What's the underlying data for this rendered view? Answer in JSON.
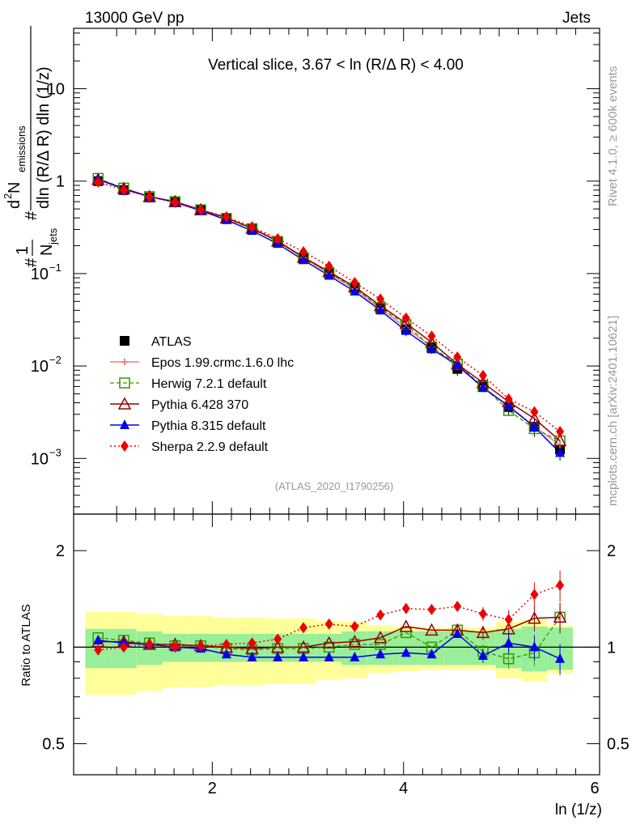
{
  "header": {
    "left": "13000 GeV pp",
    "right": "Jets",
    "side_right": "Rivet 4.1.0, ≥ 600k events",
    "side_right2": "mcplots.cern.ch [arXiv:2401.10621]",
    "watermark": "(ATLAS_2020_I1790256)"
  },
  "chart_data": [
    {
      "type": "scatter",
      "panel": "main",
      "title": "Vertical slice, 3.67 < ln (R/Δ R) < 4.00",
      "ylabel": "1/N_jets dN_emissions^2 / dln(R/ΔR) dln(1/z)",
      "ylabel_parts": {
        "frac_num": "1",
        "frac_den": "N",
        "frac_den_sub": "jets",
        "d2_num": "d",
        "d2_sup": "2",
        "n_num": " N",
        "n_sub": "emissions",
        "den": "dln (R/Δ R) dln (1/z)",
        "hash": "#"
      },
      "yscale": "log",
      "ylim": [
        0.00025,
        45
      ],
      "xlim": [
        0.55,
        6.05
      ],
      "y_ticks": [
        {
          "v": 10,
          "m": "10",
          "e": ""
        },
        {
          "v": 1,
          "m": "1",
          "e": ""
        },
        {
          "v": 0.1,
          "m": "10",
          "e": "−1"
        },
        {
          "v": 0.01,
          "m": "10",
          "e": "−2"
        },
        {
          "v": 0.001,
          "m": "10",
          "e": "−3"
        }
      ],
      "x": [
        0.806,
        1.074,
        1.343,
        1.611,
        1.879,
        2.148,
        2.416,
        2.684,
        2.953,
        3.221,
        3.489,
        3.758,
        4.026,
        4.294,
        4.563,
        4.831,
        5.099,
        5.368,
        5.636
      ],
      "series": [
        {
          "name": "ATLAS",
          "color": "#000000",
          "marker": "square",
          "values": [
            1.0,
            0.8,
            0.665,
            0.59,
            0.485,
            0.4,
            0.31,
            0.225,
            0.15,
            0.102,
            0.069,
            0.042,
            0.025,
            0.016,
            0.0093,
            0.0062,
            0.0036,
            0.0022,
            0.00125
          ],
          "err": [
            0.12,
            0.1,
            0.08,
            0.07,
            0.055,
            0.045,
            0.035,
            0.025,
            0.018,
            0.012,
            0.009,
            0.006,
            0.004,
            0.0025,
            0.0015,
            0.001,
            0.0007,
            0.0005,
            0.0003
          ]
        },
        {
          "name": "Epos 1.99.crmc.1.6.0 lhc",
          "color": "#f08080",
          "marker": "cross",
          "values": [
            1.06,
            0.84,
            0.68,
            0.6,
            0.49,
            0.405,
            0.305,
            0.222,
            0.148,
            0.1,
            0.068,
            0.042,
            0.026,
            0.016,
            0.0098,
            0.006,
            0.0036,
            0.0022,
            0.0014
          ]
        },
        {
          "name": "Herwig 7.2.1 default",
          "color": "#339900",
          "marker": "open-square",
          "values": [
            1.07,
            0.84,
            0.68,
            0.6,
            0.49,
            0.395,
            0.305,
            0.222,
            0.148,
            0.102,
            0.07,
            0.043,
            0.028,
            0.016,
            0.0105,
            0.006,
            0.0033,
            0.0021,
            0.00155
          ]
        },
        {
          "name": "Pythia 6.428 370",
          "color": "#990000",
          "marker": "open-triangle",
          "values": [
            1.04,
            0.83,
            0.68,
            0.6,
            0.49,
            0.4,
            0.31,
            0.225,
            0.15,
            0.105,
            0.072,
            0.045,
            0.029,
            0.018,
            0.0105,
            0.0066,
            0.0041,
            0.0027,
            0.00155
          ]
        },
        {
          "name": "Pythia 8.315 default",
          "color": "#0000ee",
          "marker": "triangle",
          "values": [
            1.05,
            0.82,
            0.68,
            0.59,
            0.48,
            0.38,
            0.29,
            0.21,
            0.14,
            0.095,
            0.064,
            0.04,
            0.024,
            0.0152,
            0.0103,
            0.0058,
            0.0037,
            0.0022,
            0.00115
          ]
        },
        {
          "name": "Sherpa 2.2.9 default",
          "color": "#ee0000",
          "marker": "diamond",
          "values": [
            0.98,
            0.8,
            0.68,
            0.59,
            0.49,
            0.41,
            0.32,
            0.238,
            0.172,
            0.12,
            0.08,
            0.053,
            0.033,
            0.021,
            0.0125,
            0.0079,
            0.0044,
            0.0032,
            0.00195
          ]
        }
      ],
      "legend_position": "lower-left",
      "legend": {
        "ATLAS": "ATLAS",
        "Epos": "Epos 1.99.crmc.1.6.0 lhc",
        "Herwig": "Herwig 7.2.1 default",
        "Py6": "Pythia 6.428 370",
        "Py8": "Pythia 8.315 default",
        "Sherpa": "Sherpa 2.2.9 default"
      }
    },
    {
      "type": "scatter",
      "panel": "ratio",
      "ylabel": "Ratio to ATLAS",
      "xlabel": "ln (1/z)",
      "yscale": "log",
      "ylim": [
        0.4,
        2.6
      ],
      "xlim": [
        0.55,
        6.05
      ],
      "x_ticks": [
        "2",
        "4",
        "6"
      ],
      "y_ticks": [
        "0.5",
        "1",
        "2"
      ],
      "x": [
        0.806,
        1.074,
        1.343,
        1.611,
        1.879,
        2.148,
        2.416,
        2.684,
        2.953,
        3.221,
        3.489,
        3.758,
        4.026,
        4.294,
        4.563,
        4.831,
        5.099,
        5.368,
        5.636
      ],
      "band_green": [
        0.14,
        0.14,
        0.12,
        0.1,
        0.1,
        0.1,
        0.1,
        0.1,
        0.1,
        0.1,
        0.12,
        0.12,
        0.12,
        0.12,
        0.12,
        0.12,
        0.14,
        0.16,
        0.15
      ],
      "band_yellow": [
        0.29,
        0.29,
        0.27,
        0.25,
        0.25,
        0.24,
        0.24,
        0.23,
        0.23,
        0.21,
        0.2,
        0.17,
        0.16,
        0.15,
        0.15,
        0.15,
        0.2,
        0.22,
        0.17
      ],
      "series": [
        {
          "name": "Herwig 7.2.1 default",
          "values": [
            1.07,
            1.05,
            1.03,
            1.01,
            1.01,
            0.99,
            0.98,
            0.99,
            0.99,
            1.0,
            1.02,
            1.02,
            1.11,
            1.0,
            1.13,
            0.97,
            0.92,
            0.96,
            1.24
          ]
        },
        {
          "name": "Pythia 6.428 370",
          "values": [
            1.04,
            1.04,
            1.02,
            1.02,
            1.01,
            1.0,
            0.99,
            1.0,
            1.0,
            1.03,
            1.04,
            1.07,
            1.16,
            1.13,
            1.13,
            1.11,
            1.14,
            1.23,
            1.24
          ]
        },
        {
          "name": "Pythia 8.315 default",
          "values": [
            1.05,
            1.03,
            1.02,
            1.0,
            0.99,
            0.95,
            0.93,
            0.93,
            0.93,
            0.93,
            0.93,
            0.95,
            0.96,
            0.95,
            1.1,
            0.94,
            1.03,
            1.0,
            0.92
          ]
        },
        {
          "name": "Sherpa 2.2.9 default",
          "values": [
            0.98,
            1.0,
            1.02,
            1.0,
            1.01,
            1.02,
            1.03,
            1.06,
            1.15,
            1.18,
            1.16,
            1.26,
            1.32,
            1.31,
            1.34,
            1.27,
            1.22,
            1.46,
            1.56
          ]
        }
      ]
    }
  ]
}
